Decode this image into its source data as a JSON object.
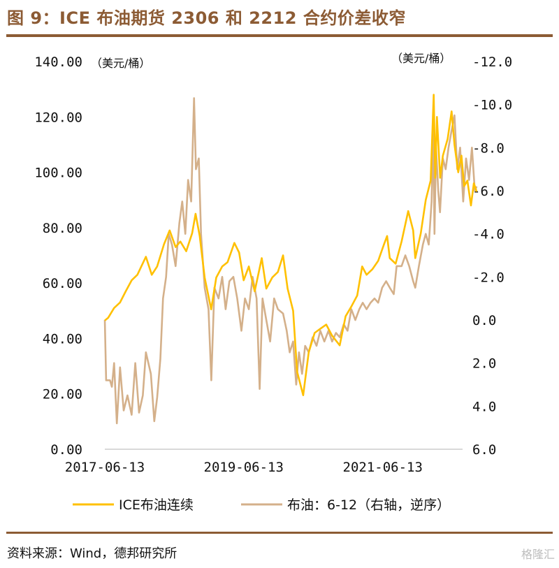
{
  "title": "图 9：ICE 布油期货 2306 和 2212 合约价差收窄",
  "source": "资料来源：Wind，德邦研究所",
  "watermark": "格隆汇",
  "colors": {
    "brand": "#8c5b34",
    "ice": "#ffc000",
    "spread": "#d4b08a",
    "axis": "#d9d9d9"
  },
  "chart_data": {
    "type": "line",
    "title": "ICE 布油期货 2306 和 2212 合约价差收窄",
    "left_axis": {
      "unit": "（美元/桶）",
      "ylim": [
        0,
        140
      ],
      "ticks": [
        "0.00",
        "20.00",
        "40.00",
        "60.00",
        "80.00",
        "100.00",
        "120.00",
        "140.00"
      ]
    },
    "right_axis": {
      "unit": "（美元/桶）",
      "ylim": [
        6,
        -12
      ],
      "reversed": true,
      "ticks": [
        "6.0",
        "4.0",
        "2.0",
        "0.0",
        "-2.0",
        "-4.0",
        "-6.0",
        "-8.0",
        "-10.0",
        "-12.0"
      ]
    },
    "x_ticks": [
      "2017-06-13",
      "2019-06-13",
      "2021-06-13"
    ],
    "xlim": [
      "2017-06-13",
      "2022-11-01"
    ],
    "legend": {
      "position": "bottom",
      "entries": [
        "ICE布油连续",
        "布油：6-12（右轴，逆序）"
      ]
    },
    "series": [
      {
        "name": "ICE布油连续",
        "axis": "left",
        "points": [
          [
            "2017-06-13",
            46.5
          ],
          [
            "2017-07-01",
            47.5
          ],
          [
            "2017-08-01",
            51
          ],
          [
            "2017-09-01",
            53
          ],
          [
            "2017-10-01",
            57
          ],
          [
            "2017-11-01",
            61
          ],
          [
            "2017-12-01",
            63
          ],
          [
            "2018-01-15",
            69.5
          ],
          [
            "2018-02-15",
            63
          ],
          [
            "2018-03-15",
            66
          ],
          [
            "2018-04-20",
            74
          ],
          [
            "2018-05-20",
            79
          ],
          [
            "2018-06-20",
            73
          ],
          [
            "2018-07-15",
            75
          ],
          [
            "2018-08-15",
            71.5
          ],
          [
            "2018-09-15",
            78
          ],
          [
            "2018-10-03",
            85
          ],
          [
            "2018-10-25",
            77
          ],
          [
            "2018-11-20",
            62
          ],
          [
            "2018-12-24",
            50.5
          ],
          [
            "2019-01-20",
            62
          ],
          [
            "2019-02-20",
            66
          ],
          [
            "2019-03-20",
            67.5
          ],
          [
            "2019-04-25",
            74.5
          ],
          [
            "2019-05-20",
            71
          ],
          [
            "2019-06-13",
            61
          ],
          [
            "2019-07-10",
            66
          ],
          [
            "2019-08-10",
            57
          ],
          [
            "2019-09-16",
            69
          ],
          [
            "2019-10-10",
            58
          ],
          [
            "2019-11-10",
            62
          ],
          [
            "2019-12-10",
            64
          ],
          [
            "2020-01-06",
            70
          ],
          [
            "2020-01-30",
            58
          ],
          [
            "2020-02-28",
            50
          ],
          [
            "2020-03-20",
            28
          ],
          [
            "2020-04-21",
            19.5
          ],
          [
            "2020-05-20",
            35
          ],
          [
            "2020-06-20",
            42
          ],
          [
            "2020-07-20",
            43.5
          ],
          [
            "2020-08-20",
            45
          ],
          [
            "2020-09-20",
            41
          ],
          [
            "2020-10-30",
            37.5
          ],
          [
            "2020-11-30",
            48
          ],
          [
            "2020-12-30",
            51.5
          ],
          [
            "2021-01-30",
            55.5
          ],
          [
            "2021-02-25",
            66
          ],
          [
            "2021-03-20",
            63
          ],
          [
            "2021-04-20",
            65
          ],
          [
            "2021-05-20",
            68
          ],
          [
            "2021-06-20",
            74
          ],
          [
            "2021-07-06",
            77
          ],
          [
            "2021-07-20",
            69
          ],
          [
            "2021-08-20",
            67
          ],
          [
            "2021-09-20",
            75
          ],
          [
            "2021-10-25",
            86
          ],
          [
            "2021-11-20",
            79
          ],
          [
            "2021-12-01",
            69
          ],
          [
            "2021-12-30",
            78
          ],
          [
            "2022-01-25",
            90
          ],
          [
            "2022-02-20",
            97
          ],
          [
            "2022-03-08",
            128
          ],
          [
            "2022-03-16",
            98
          ],
          [
            "2022-03-25",
            120
          ],
          [
            "2022-04-11",
            98
          ],
          [
            "2022-04-25",
            106
          ],
          [
            "2022-05-20",
            112
          ],
          [
            "2022-06-10",
            122
          ],
          [
            "2022-06-25",
            110
          ],
          [
            "2022-07-15",
            100
          ],
          [
            "2022-08-01",
            106
          ],
          [
            "2022-08-15",
            95
          ],
          [
            "2022-09-01",
            97
          ],
          [
            "2022-09-20",
            88
          ],
          [
            "2022-10-05",
            96
          ],
          [
            "2022-10-20",
            93
          ]
        ]
      },
      {
        "name": "布油：6-12（右轴，逆序）",
        "axis": "right",
        "points": [
          [
            "2017-06-13",
            0.0
          ],
          [
            "2017-06-20",
            2.8
          ],
          [
            "2017-07-10",
            2.8
          ],
          [
            "2017-07-20",
            3.1
          ],
          [
            "2017-08-01",
            2.0
          ],
          [
            "2017-08-15",
            4.8
          ],
          [
            "2017-09-01",
            2.2
          ],
          [
            "2017-09-20",
            4.2
          ],
          [
            "2017-10-10",
            3.5
          ],
          [
            "2017-11-01",
            4.4
          ],
          [
            "2017-11-20",
            2.0
          ],
          [
            "2017-12-10",
            4.3
          ],
          [
            "2017-12-30",
            3.5
          ],
          [
            "2018-01-15",
            1.5
          ],
          [
            "2018-02-10",
            2.5
          ],
          [
            "2018-02-28",
            4.7
          ],
          [
            "2018-03-15",
            3.6
          ],
          [
            "2018-04-01",
            1.8
          ],
          [
            "2018-04-15",
            -1.0
          ],
          [
            "2018-05-01",
            -2.0
          ],
          [
            "2018-05-15",
            -4.0
          ],
          [
            "2018-06-01",
            -3.5
          ],
          [
            "2018-06-20",
            -2.5
          ],
          [
            "2018-07-10",
            -4.5
          ],
          [
            "2018-07-25",
            -5.5
          ],
          [
            "2018-08-10",
            -4.0
          ],
          [
            "2018-08-25",
            -6.5
          ],
          [
            "2018-09-10",
            -5.5
          ],
          [
            "2018-09-25",
            -10.3
          ],
          [
            "2018-10-05",
            -7.0
          ],
          [
            "2018-10-20",
            -7.5
          ],
          [
            "2018-11-01",
            -4.0
          ],
          [
            "2018-11-20",
            -1.5
          ],
          [
            "2018-12-10",
            -0.5
          ],
          [
            "2018-12-25",
            2.8
          ],
          [
            "2019-01-10",
            -1.5
          ],
          [
            "2019-02-01",
            -1.0
          ],
          [
            "2019-02-20",
            -2.0
          ],
          [
            "2019-03-10",
            -0.5
          ],
          [
            "2019-03-30",
            -1.8
          ],
          [
            "2019-04-20",
            -2.0
          ],
          [
            "2019-05-10",
            -1.0
          ],
          [
            "2019-06-01",
            0.5
          ],
          [
            "2019-06-20",
            -1.0
          ],
          [
            "2019-07-10",
            -0.5
          ],
          [
            "2019-07-30",
            -2.0
          ],
          [
            "2019-08-20",
            -1.0
          ],
          [
            "2019-09-05",
            3.2
          ],
          [
            "2019-09-20",
            -1.0
          ],
          [
            "2019-10-10",
            0.0
          ],
          [
            "2019-10-30",
            1.0
          ],
          [
            "2019-11-20",
            -1.0
          ],
          [
            "2019-12-10",
            -0.5
          ],
          [
            "2020-01-06",
            -0.3
          ],
          [
            "2020-01-25",
            0.5
          ],
          [
            "2020-02-10",
            1.5
          ],
          [
            "2020-02-28",
            1.0
          ],
          [
            "2020-03-15",
            3.0
          ],
          [
            "2020-03-30",
            1.5
          ],
          [
            "2020-04-15",
            2.5
          ],
          [
            "2020-05-01",
            1.2
          ],
          [
            "2020-05-20",
            1.5
          ],
          [
            "2020-06-10",
            0.8
          ],
          [
            "2020-06-30",
            1.2
          ],
          [
            "2020-07-20",
            0.5
          ],
          [
            "2020-08-10",
            1.0
          ],
          [
            "2020-09-01",
            0.5
          ],
          [
            "2020-09-20",
            1.0
          ],
          [
            "2020-10-10",
            0.6
          ],
          [
            "2020-10-30",
            0.8
          ],
          [
            "2020-11-20",
            0.2
          ],
          [
            "2020-12-10",
            0.5
          ],
          [
            "2020-12-30",
            -0.5
          ],
          [
            "2021-01-20",
            0.0
          ],
          [
            "2021-02-10",
            -0.5
          ],
          [
            "2021-02-28",
            -0.8
          ],
          [
            "2021-03-20",
            -0.5
          ],
          [
            "2021-04-10",
            -0.8
          ],
          [
            "2021-05-01",
            -1.0
          ],
          [
            "2021-05-20",
            -0.8
          ],
          [
            "2021-06-10",
            -1.5
          ],
          [
            "2021-07-01",
            -1.8
          ],
          [
            "2021-07-20",
            -1.5
          ],
          [
            "2021-08-10",
            -1.2
          ],
          [
            "2021-08-25",
            -2.5
          ],
          [
            "2021-09-20",
            -2.5
          ],
          [
            "2021-10-10",
            -3.0
          ],
          [
            "2021-10-30",
            -2.5
          ],
          [
            "2021-11-20",
            -1.8
          ],
          [
            "2021-12-01",
            -1.5
          ],
          [
            "2021-12-20",
            -2.5
          ],
          [
            "2022-01-10",
            -3.5
          ],
          [
            "2022-01-25",
            -4.0
          ],
          [
            "2022-02-10",
            -3.5
          ],
          [
            "2022-02-25",
            -5.5
          ],
          [
            "2022-03-05",
            -9.0
          ],
          [
            "2022-03-12",
            -4.0
          ],
          [
            "2022-03-20",
            -8.0
          ],
          [
            "2022-04-01",
            -6.0
          ],
          [
            "2022-04-10",
            -5.0
          ],
          [
            "2022-04-25",
            -7.5
          ],
          [
            "2022-05-10",
            -7.0
          ],
          [
            "2022-05-25",
            -8.0
          ],
          [
            "2022-06-10",
            -8.8
          ],
          [
            "2022-06-25",
            -9.5
          ],
          [
            "2022-07-10",
            -7.0
          ],
          [
            "2022-07-25",
            -8.0
          ],
          [
            "2022-08-10",
            -5.5
          ],
          [
            "2022-08-25",
            -7.5
          ],
          [
            "2022-09-10",
            -6.5
          ],
          [
            "2022-09-25",
            -8.0
          ],
          [
            "2022-10-10",
            -6.0
          ],
          [
            "2022-10-20",
            -6.2
          ]
        ]
      }
    ]
  }
}
